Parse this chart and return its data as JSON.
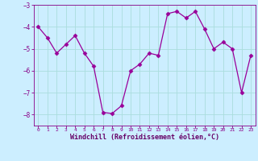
{
  "x": [
    0,
    1,
    2,
    3,
    4,
    5,
    6,
    7,
    8,
    9,
    10,
    11,
    12,
    13,
    14,
    15,
    16,
    17,
    18,
    19,
    20,
    21,
    22,
    23
  ],
  "y": [
    -4.0,
    -4.5,
    -5.2,
    -4.8,
    -4.4,
    -5.2,
    -5.8,
    -7.9,
    -7.95,
    -7.6,
    -6.0,
    -5.7,
    -5.2,
    -5.3,
    -3.4,
    -3.3,
    -3.6,
    -3.3,
    -4.1,
    -5.0,
    -4.7,
    -5.0,
    -7.0,
    -5.3
  ],
  "line_color": "#990099",
  "marker": "D",
  "marker_size": 2.5,
  "bg_color": "#cceeff",
  "grid_color": "#aadddd",
  "xlabel": "Windchill (Refroidissement éolien,°C)",
  "xlabel_color": "#660066",
  "tick_color": "#880088",
  "ylim": [
    -8.5,
    -3.0
  ],
  "xlim": [
    -0.5,
    23.5
  ],
  "yticks": [
    -8,
    -7,
    -6,
    -5,
    -4,
    -3
  ],
  "xticks": [
    0,
    1,
    2,
    3,
    4,
    5,
    6,
    7,
    8,
    9,
    10,
    11,
    12,
    13,
    14,
    15,
    16,
    17,
    18,
    19,
    20,
    21,
    22,
    23
  ],
  "figsize": [
    3.2,
    2.0
  ],
  "dpi": 100
}
